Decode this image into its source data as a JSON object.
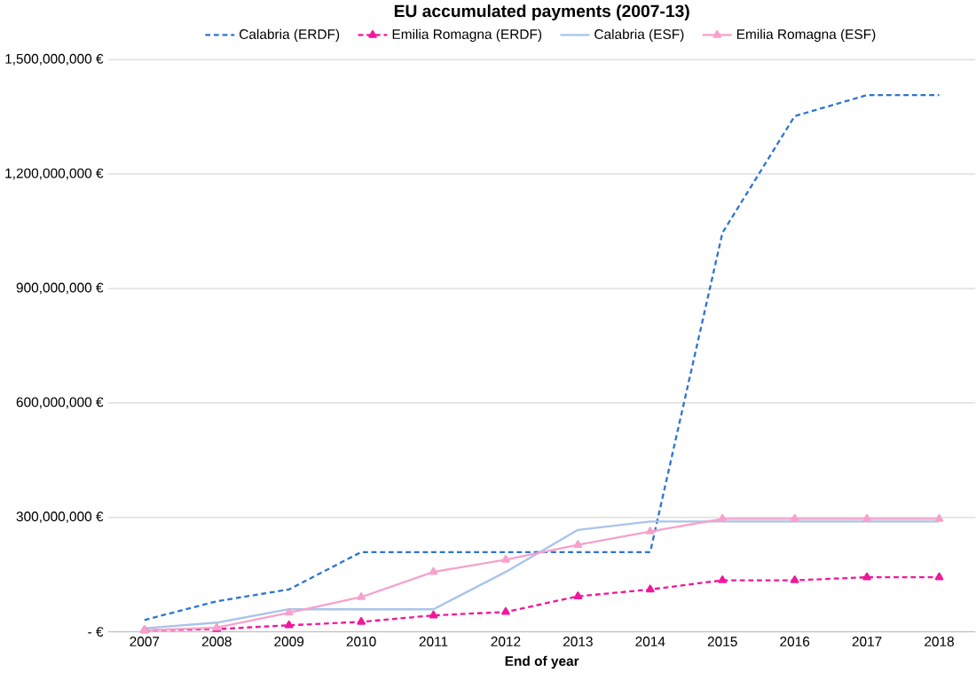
{
  "chart_data": {
    "type": "line",
    "title": "EU accumulated payments (2007-13)",
    "xlabel": "End of year",
    "categories": [
      "2007",
      "2008",
      "2009",
      "2010",
      "2011",
      "2012",
      "2013",
      "2014",
      "2015",
      "2016",
      "2017",
      "2018"
    ],
    "series": [
      {
        "name": "Calabria (ERDF)",
        "color": "#2e75d0",
        "line_style": "dashed",
        "marker": "none",
        "values": [
          31000000,
          80000000,
          111000000,
          209000000,
          209000000,
          209000000,
          209000000,
          209000000,
          1046000000,
          1352000000,
          1407000000,
          1407000000
        ]
      },
      {
        "name": "Emilia Romagna (ERDF)",
        "color": "#f0189a",
        "line_style": "dashed",
        "marker": "triangle",
        "values": [
          4000000,
          7000000,
          17000000,
          26000000,
          43000000,
          52000000,
          93000000,
          111000000,
          135000000,
          135000000,
          143000000,
          143000000
        ]
      },
      {
        "name": "Calabria (ESF)",
        "color": "#a9c4ea",
        "line_style": "solid",
        "marker": "none",
        "values": [
          9000000,
          24000000,
          59000000,
          59000000,
          59000000,
          157000000,
          267000000,
          289000000,
          289000000,
          289000000,
          289000000,
          289000000
        ]
      },
      {
        "name": "Emilia Romagna (ESF)",
        "color": "#f7a1cc",
        "line_style": "solid",
        "marker": "triangle",
        "values": [
          4000000,
          11000000,
          50000000,
          91000000,
          157000000,
          189000000,
          228000000,
          263000000,
          296000000,
          296000000,
          296000000,
          296000000
        ]
      }
    ],
    "ylim": [
      0,
      1500000000
    ],
    "yticks": [
      {
        "value": 0,
        "label": "-   €"
      },
      {
        "value": 300000000,
        "label": "300,000,000 €"
      },
      {
        "value": 600000000,
        "label": "600,000,000 €"
      },
      {
        "value": 900000000,
        "label": "900,000,000 €"
      },
      {
        "value": 1200000000,
        "label": "1,200,000,000 €"
      },
      {
        "value": 1500000000,
        "label": "1,500,000,000 €"
      }
    ],
    "grid": "y",
    "legend": "top"
  }
}
